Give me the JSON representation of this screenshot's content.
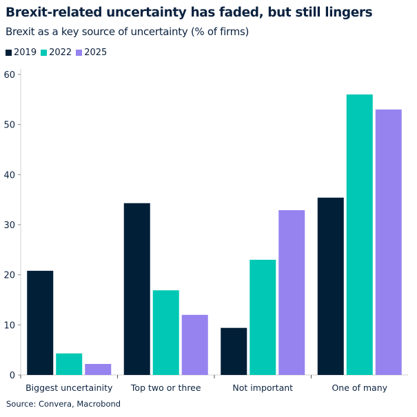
{
  "chart_data": {
    "type": "bar",
    "title": "Brexit-related uncertainty has faded, but still lingers",
    "subtitle": "Brexit as a key source of uncertainty (% of firms)",
    "categories": [
      "Biggest uncertainity",
      "Top two or three",
      "Not important",
      "One of many"
    ],
    "series": [
      {
        "name": "2019",
        "color": "#021f38",
        "values": [
          20.8,
          34.3,
          9.4,
          35.4
        ]
      },
      {
        "name": "2022",
        "color": "#00c8b4",
        "values": [
          4.3,
          16.9,
          23.0,
          56.0
        ]
      },
      {
        "name": "2025",
        "color": "#9683ef",
        "values": [
          2.2,
          12.0,
          32.9,
          53.0
        ]
      }
    ],
    "yticks": [
      0,
      10,
      20,
      30,
      40,
      50,
      60
    ],
    "ylim": [
      0,
      60
    ],
    "grid": false,
    "legend": "top-left",
    "source": "Source: Convera, Macrobond"
  }
}
